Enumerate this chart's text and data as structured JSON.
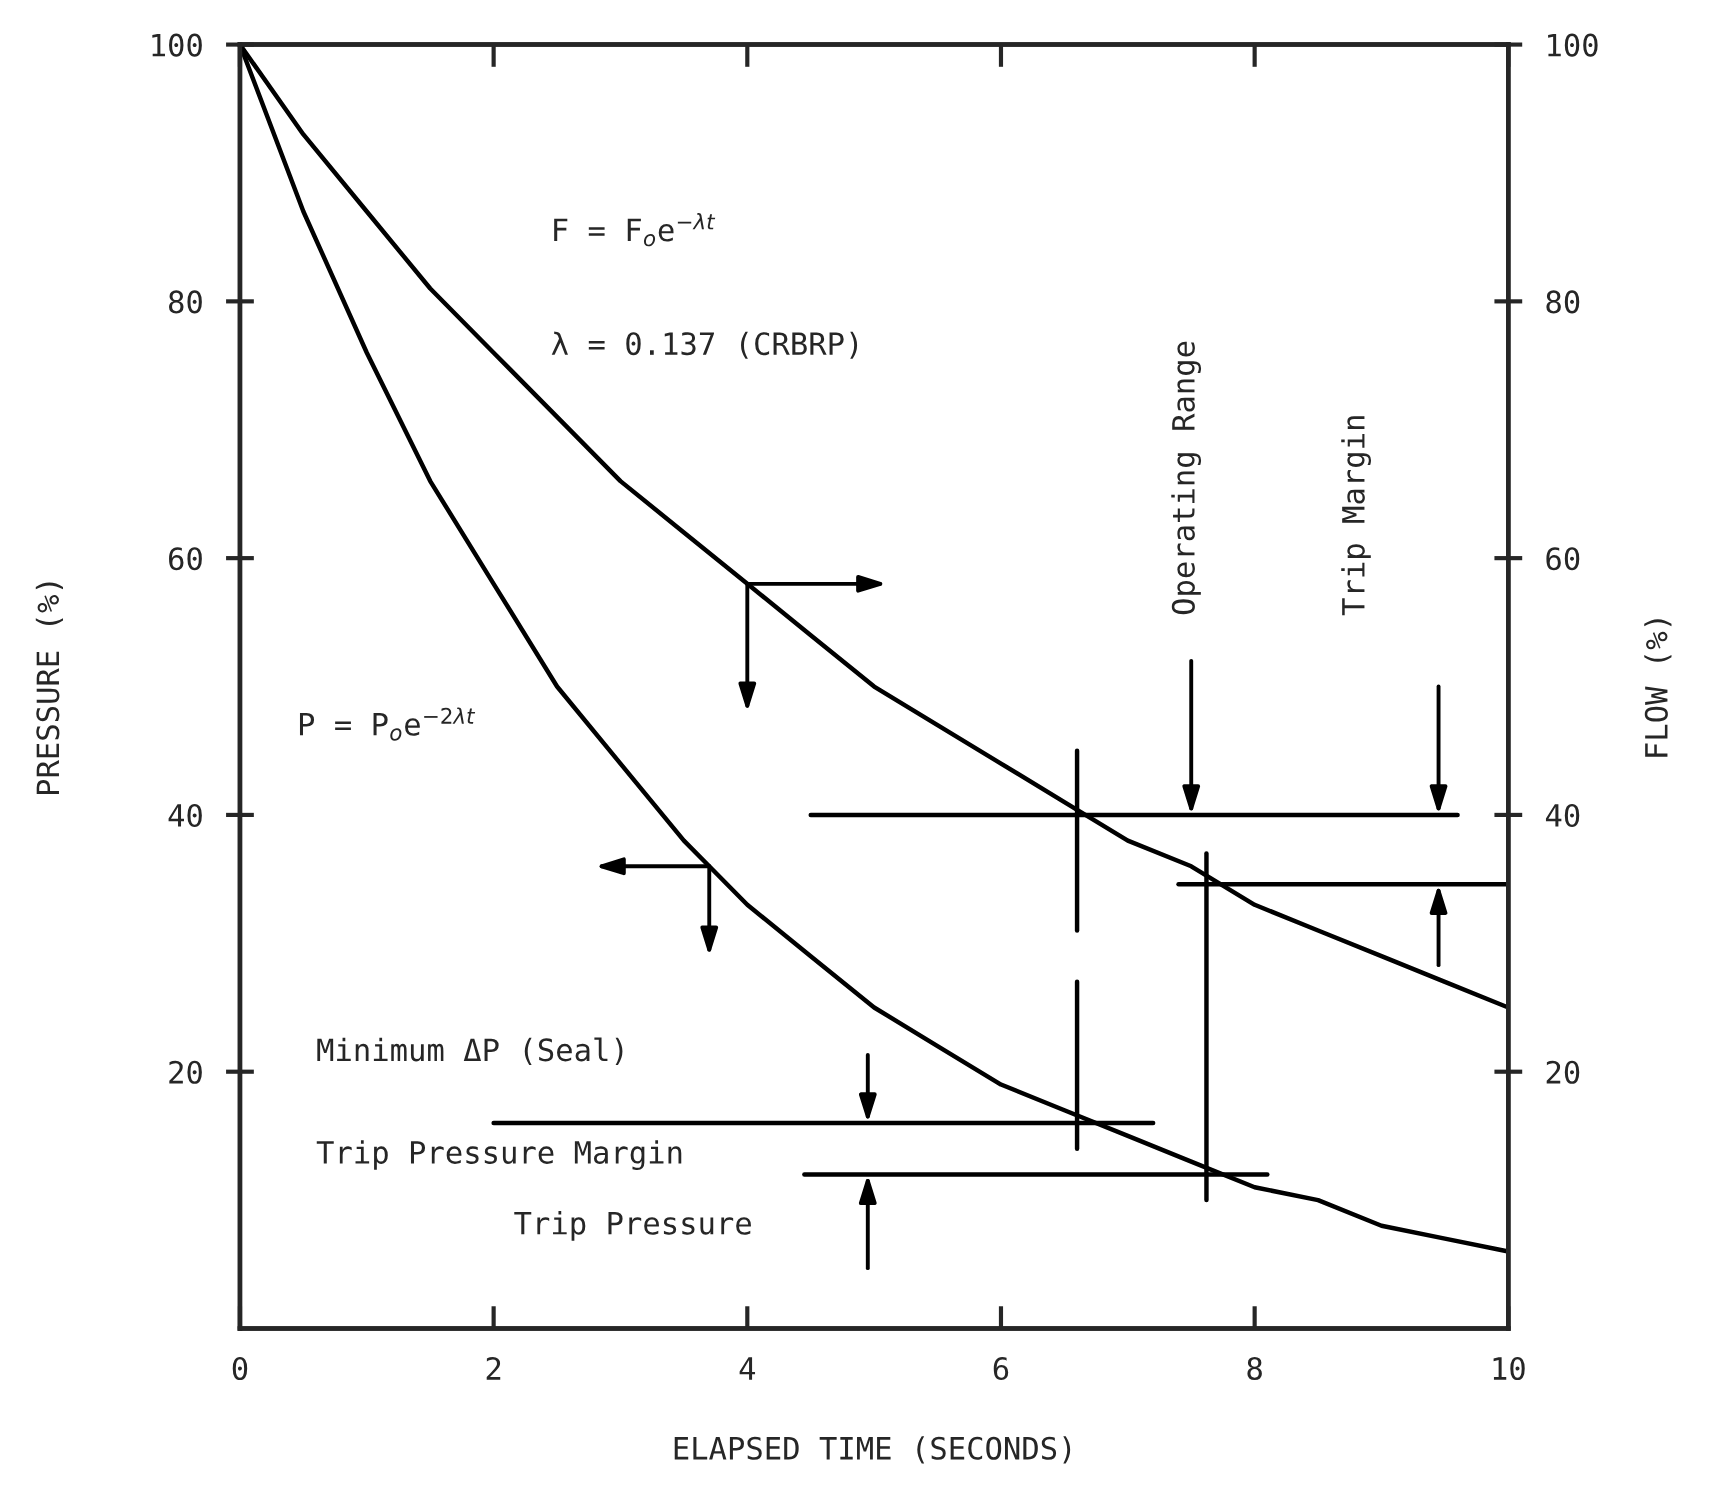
{
  "chart_data": {
    "type": "line",
    "xlabel": "ELAPSED TIME (SECONDS)",
    "ylabel": "PRESSURE (%)",
    "y2label": "FLOW (%)",
    "x": [
      0,
      0.5,
      1,
      1.5,
      2,
      2.5,
      3,
      3.5,
      4,
      4.5,
      5,
      5.5,
      6,
      6.5,
      7,
      7.5,
      8,
      8.5,
      9,
      9.5,
      10
    ],
    "series": [
      {
        "color": "#000000",
        "axis": "y2",
        "values": [
          100,
          93,
          87,
          81,
          76,
          71,
          66,
          62,
          58,
          54,
          50,
          47,
          44,
          41,
          38,
          36,
          33,
          31,
          29,
          27,
          25
        ]
      },
      {
        "color": "#000000",
        "x": [
          0,
          0.5,
          1,
          1.5,
          2,
          2.5,
          3,
          3.5,
          3.7,
          4,
          4.5,
          5,
          5.5,
          6,
          6.5,
          7,
          7.5,
          8,
          8.5,
          9,
          9.5,
          10
        ],
        "values": [
          100,
          87,
          76,
          66,
          58,
          50,
          44,
          38,
          36,
          33,
          29,
          25,
          22,
          19,
          17,
          15,
          13,
          11,
          10,
          8,
          7,
          6
        ]
      },
      {
        "color": "#000000",
        "x": [
          4.5,
          9.6
        ],
        "values": [
          40,
          40
        ]
      },
      {
        "color": "#000000",
        "x": [
          7.4,
          10
        ],
        "values": [
          34.6,
          34.6
        ]
      },
      {
        "color": "#000000",
        "x": [
          2.0,
          7.2
        ],
        "values": [
          16,
          16
        ]
      },
      {
        "color": "#000000",
        "x": [
          4.45,
          8.1
        ],
        "values": [
          12,
          12
        ]
      },
      {
        "color": "#000000",
        "x": [
          6.6,
          6.6
        ],
        "values": [
          45,
          31
        ]
      },
      {
        "color": "#000000",
        "x": [
          6.6,
          6.6
        ],
        "values": [
          27,
          14
        ]
      },
      {
        "color": "#000000",
        "x": [
          7.62,
          7.62
        ],
        "values": [
          37,
          10
        ]
      }
    ],
    "xlim": [
      0,
      10
    ],
    "xticks": [
      0,
      2,
      4,
      6,
      8,
      10
    ],
    "ylim": [
      0,
      100
    ],
    "yticks": [
      20,
      40,
      60,
      80,
      100
    ],
    "y2lim": [
      0,
      100
    ],
    "y2ticks": [
      20,
      40,
      60,
      80,
      100
    ],
    "grid": false,
    "marker": "none",
    "line_style": "solid",
    "annotations": [
      "F = F$_{o}$e$^{−λt}$",
      "λ = 0.137 (CRBRP)",
      "P = P$_{o}$e$^{−2λt}$",
      "Operating Range",
      "Trip Margin",
      "Minimum ΔP (Seal)",
      "Trip Pressure Margin",
      "Trip Pressure"
    ]
  }
}
